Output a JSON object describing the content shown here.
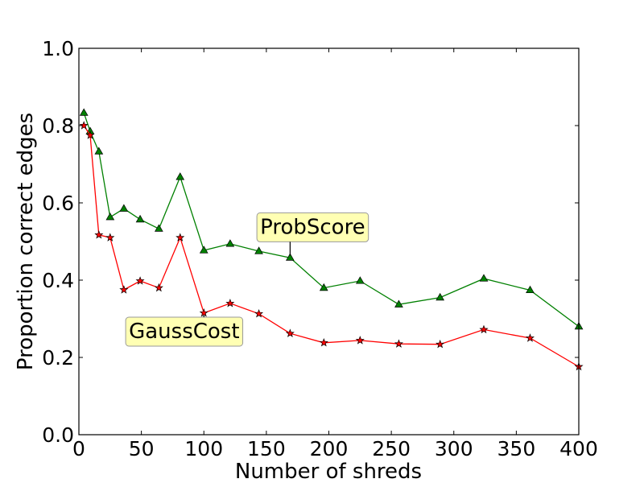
{
  "chart_data": {
    "type": "line",
    "title": "",
    "xlabel": "Number of shreds",
    "ylabel": "Proportion correct edges",
    "xlim": [
      0,
      400
    ],
    "ylim": [
      0.0,
      1.0
    ],
    "xticks": [
      0,
      50,
      100,
      150,
      200,
      250,
      300,
      350,
      400
    ],
    "yticks": [
      0.0,
      0.2,
      0.4,
      0.6,
      0.8,
      1.0
    ],
    "xtick_labels": [
      "0",
      "50",
      "100",
      "150",
      "200",
      "250",
      "300",
      "350",
      "400"
    ],
    "ytick_labels": [
      "0.0",
      "0.2",
      "0.4",
      "0.6",
      "0.8",
      "1.0"
    ],
    "grid": false,
    "series": [
      {
        "name": "ProbScore",
        "color": "#008000",
        "marker": "triangle",
        "x": [
          4,
          9,
          16,
          25,
          36,
          49,
          64,
          81,
          100,
          121,
          144,
          169,
          196,
          225,
          256,
          289,
          324,
          361,
          400
        ],
        "y": [
          0.833,
          0.785,
          0.733,
          0.563,
          0.585,
          0.557,
          0.533,
          0.667,
          0.477,
          0.494,
          0.475,
          0.458,
          0.38,
          0.398,
          0.337,
          0.355,
          0.404,
          0.374,
          0.28
        ]
      },
      {
        "name": "GaussCost",
        "color": "#ff0000",
        "marker": "star",
        "x": [
          4,
          9,
          16,
          25,
          36,
          49,
          64,
          81,
          100,
          121,
          144,
          169,
          196,
          225,
          256,
          289,
          324,
          361,
          400
        ],
        "y": [
          0.8,
          0.775,
          0.517,
          0.51,
          0.375,
          0.398,
          0.38,
          0.51,
          0.315,
          0.34,
          0.313,
          0.262,
          0.238,
          0.244,
          0.235,
          0.234,
          0.272,
          0.25,
          0.176
        ]
      }
    ],
    "annotations": [
      {
        "text": "ProbScore",
        "series": "ProbScore",
        "x": 169,
        "y": 0.458,
        "text_x": 145,
        "text_y": 0.52,
        "box_color": "#ffffb3"
      },
      {
        "text": "GaussCost",
        "series": "GaussCost",
        "x": 100,
        "y": 0.315,
        "text_x": 40,
        "text_y": 0.25,
        "box_color": "#ffffb3"
      }
    ]
  }
}
